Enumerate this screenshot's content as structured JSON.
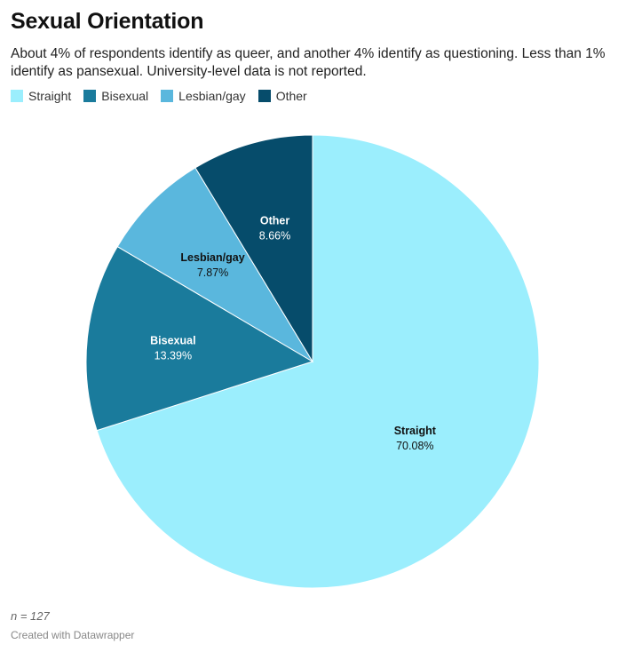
{
  "header": {
    "title": "Sexual Orientation",
    "subtitle": "About 4% of respondents identify as queer, and another 4% identify as questioning. Less than 1% identify as pansexual. University-level data is not reported."
  },
  "legend": {
    "items": [
      {
        "label": "Straight",
        "color": "#9beefd"
      },
      {
        "label": "Bisexual",
        "color": "#1a7b9c"
      },
      {
        "label": "Lesbian/gay",
        "color": "#5ab7dd"
      },
      {
        "label": "Other",
        "color": "#064c6b"
      }
    ]
  },
  "chart_data": {
    "type": "pie",
    "title": "Sexual Orientation",
    "slices": [
      {
        "name": "Straight",
        "value": 70.08,
        "value_label": "70.08%",
        "color": "#9beefd",
        "text_color": "#111111"
      },
      {
        "name": "Bisexual",
        "value": 13.39,
        "value_label": "13.39%",
        "color": "#1a7b9c",
        "text_color": "#ffffff"
      },
      {
        "name": "Lesbian/gay",
        "value": 7.87,
        "value_label": "7.87%",
        "color": "#5ab7dd",
        "text_color": "#111111"
      },
      {
        "name": "Other",
        "value": 8.66,
        "value_label": "8.66%",
        "color": "#064c6b",
        "text_color": "#ffffff"
      }
    ],
    "legend_position": "top-left"
  },
  "footer": {
    "note": "n = 127",
    "credit": "Created with Datawrapper"
  }
}
